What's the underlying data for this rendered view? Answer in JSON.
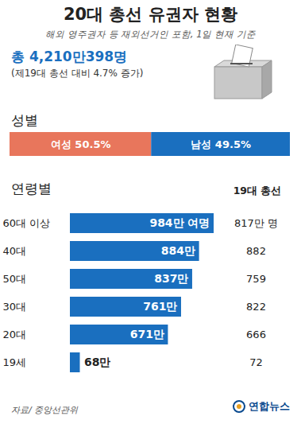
{
  "header": {
    "title": "20대 총선 유권자 현황",
    "subtitle": "해외 영주권자 등 재외선거인 포함, 1일 현재 기준",
    "total": "총 4,210만398명",
    "total_note": "(제19대 총선 대비 4.7% 증가)"
  },
  "chart_data": [
    {
      "type": "bar",
      "orientation": "horizontal",
      "stacked": true,
      "title": "성별",
      "categories": [
        "여성",
        "남성"
      ],
      "values": [
        50.5,
        49.5
      ],
      "value_labels": [
        "여성 50.5%",
        "남성 49.5%"
      ],
      "colors": [
        "#e8765c",
        "#1a6fbf"
      ],
      "xlim": [
        0,
        100
      ],
      "tick_labels": false,
      "data_labels": true
    },
    {
      "type": "bar",
      "orientation": "horizontal",
      "title": "연령별",
      "categories": [
        "60대 이상",
        "40대",
        "50대",
        "30대",
        "20대",
        "19세"
      ],
      "values": [
        984,
        884,
        837,
        761,
        671,
        68
      ],
      "value_labels": [
        "984만 여명",
        "884만",
        "837만",
        "761만",
        "671만",
        "68만"
      ],
      "color": "#1a6fbf",
      "tick_labels": "y",
      "data_labels": true,
      "previous": {
        "name": "19대 총선",
        "values": [
          817,
          882,
          759,
          822,
          666,
          72
        ],
        "value_labels": [
          "817만 명",
          "882",
          "759",
          "822",
          "666",
          "72"
        ]
      }
    }
  ],
  "footer": {
    "source": "자료/ 중앙선관위",
    "credit": "연합뉴스"
  }
}
